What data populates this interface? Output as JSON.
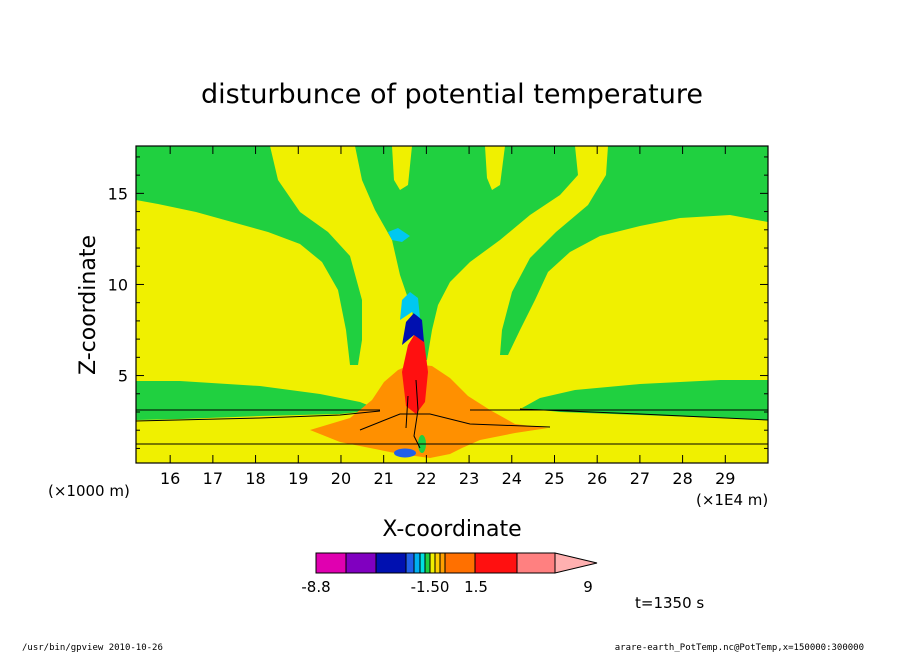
{
  "chart_data": {
    "type": "heatmap",
    "title": "disturbunce of potential temperature",
    "xlabel": "X-coordinate",
    "ylabel": "Z-coordinate",
    "x_unit_left": "(×1000 m)",
    "x_unit_right": "(×1E4 m)",
    "xlim": [
      15.2,
      30.0
    ],
    "ylim": [
      0.2,
      17.6
    ],
    "x_ticks": [
      16,
      17,
      18,
      19,
      20,
      21,
      22,
      23,
      24,
      25,
      26,
      27,
      28,
      29
    ],
    "y_ticks": [
      5,
      10,
      15
    ],
    "colorbar": {
      "colors": [
        "#e000b0",
        "#8000c0",
        "#0010b0",
        "#2060e8",
        "#00b0f0",
        "#00e0e0",
        "#20d040",
        "#f0f000",
        "#ffd000",
        "#ffa000",
        "#ff7000",
        "#ff1010",
        "#ff8080",
        "#ffb0b0"
      ],
      "labels": [
        "-8.8",
        "-1.50",
        "1.5",
        "9"
      ]
    },
    "time_label": "t=1350 s"
  },
  "footer": {
    "left": "/usr/bin/gpview   2010-10-26",
    "right": "arare-earth_PotTemp.nc@PotTemp,x=150000:300000"
  }
}
